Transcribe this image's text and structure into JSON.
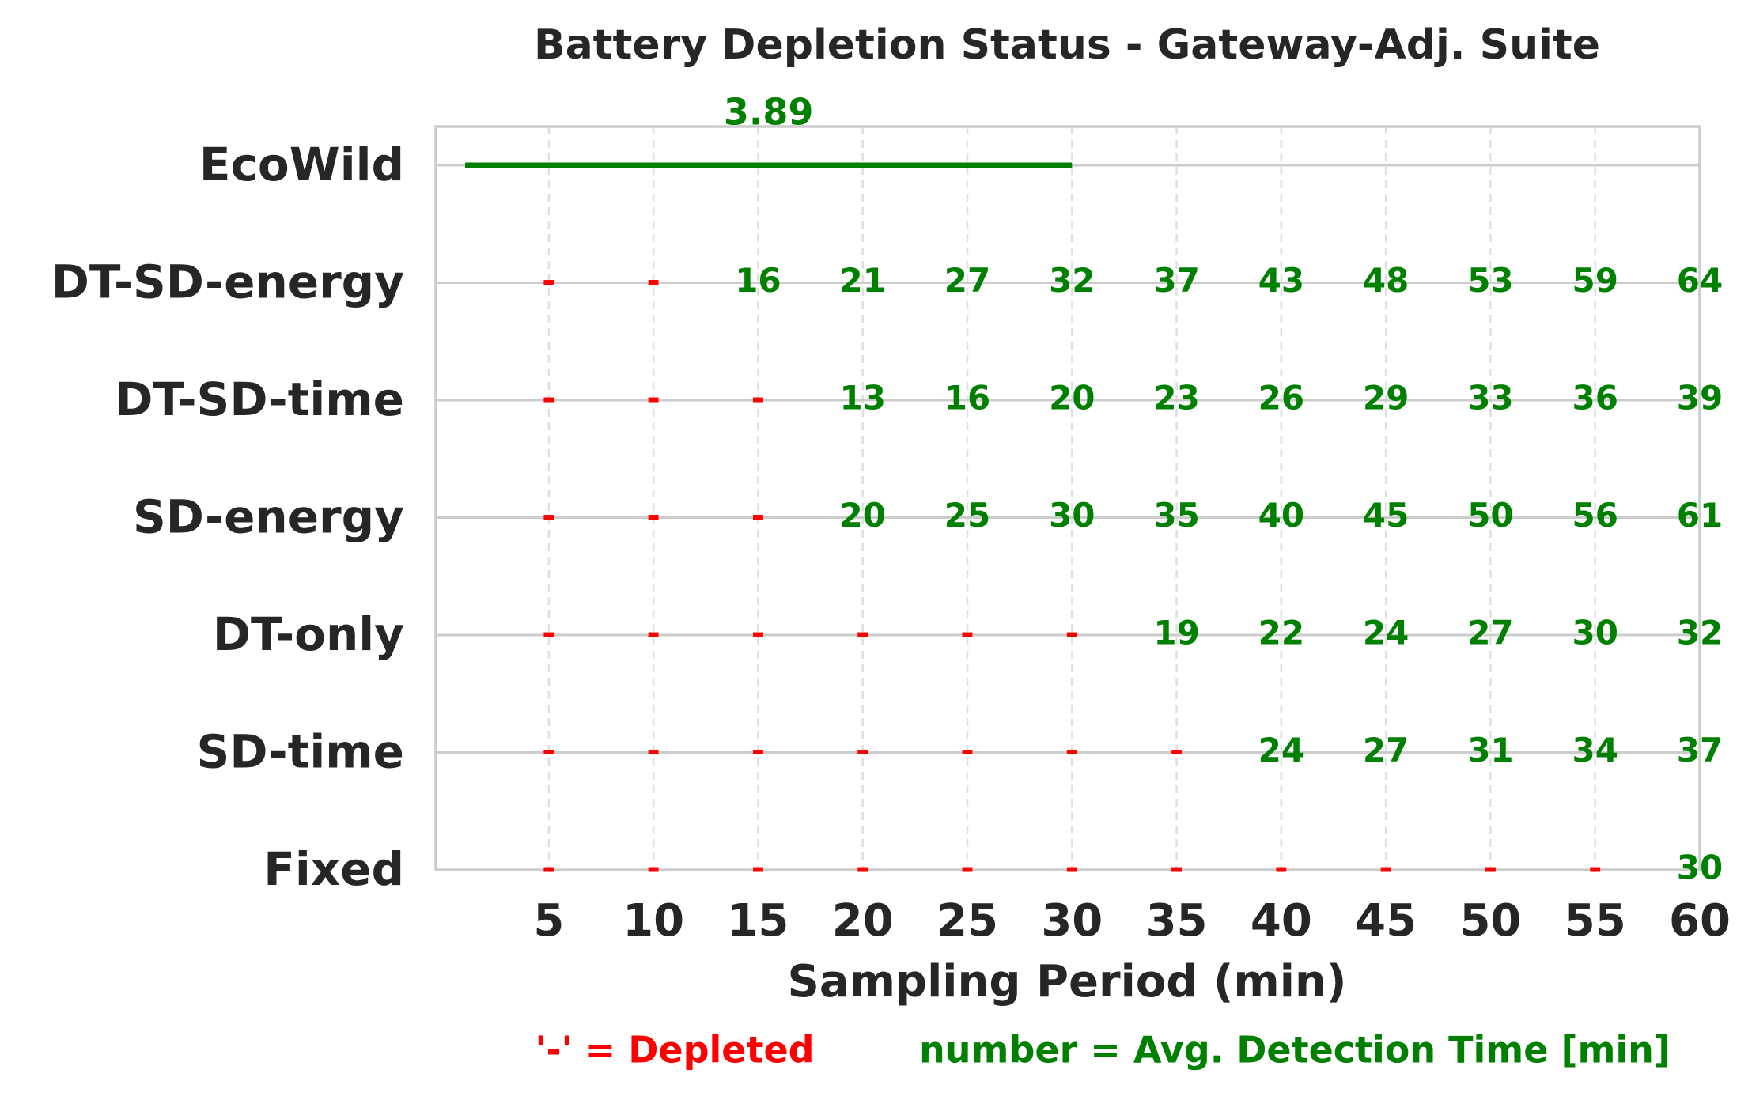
{
  "chart_data": {
    "type": "status-grid",
    "title": "Battery Depletion Status - Gateway-Adj. Suite",
    "x_label": "Sampling Period (min)",
    "x": [
      5,
      10,
      15,
      20,
      25,
      30,
      35,
      40,
      45,
      50,
      55,
      60
    ],
    "xlim": [
      -0.4,
      60
    ],
    "xticks": [
      5,
      10,
      15,
      20,
      25,
      30,
      35,
      40,
      45,
      50,
      55,
      60
    ],
    "grid": true,
    "depleted_symbol": "-",
    "depleted_color": "#ff0000",
    "value_color": "#008000",
    "series": [
      {
        "name": "EcoWild",
        "span": [
          1,
          30
        ],
        "value": 3.89
      },
      {
        "name": "DT-SD-energy",
        "values": [
          null,
          null,
          16,
          21,
          27,
          32,
          37,
          43,
          48,
          53,
          59,
          64
        ]
      },
      {
        "name": "DT-SD-time",
        "values": [
          null,
          null,
          null,
          13,
          16,
          20,
          23,
          26,
          29,
          33,
          36,
          39
        ]
      },
      {
        "name": "SD-energy",
        "values": [
          null,
          null,
          null,
          20,
          25,
          30,
          35,
          40,
          45,
          50,
          56,
          61
        ]
      },
      {
        "name": "DT-only",
        "values": [
          null,
          null,
          null,
          null,
          null,
          null,
          19,
          22,
          24,
          27,
          30,
          32
        ]
      },
      {
        "name": "SD-time",
        "values": [
          null,
          null,
          null,
          null,
          null,
          null,
          null,
          24,
          27,
          31,
          34,
          37
        ]
      },
      {
        "name": "Fixed",
        "values": [
          null,
          null,
          null,
          null,
          null,
          null,
          null,
          null,
          null,
          null,
          null,
          30
        ]
      }
    ],
    "legend": [
      {
        "label": "'-' = Depleted",
        "color": "#ff0000"
      },
      {
        "label": "number = Avg. Detection Time [min]",
        "color": "#008000"
      }
    ]
  }
}
